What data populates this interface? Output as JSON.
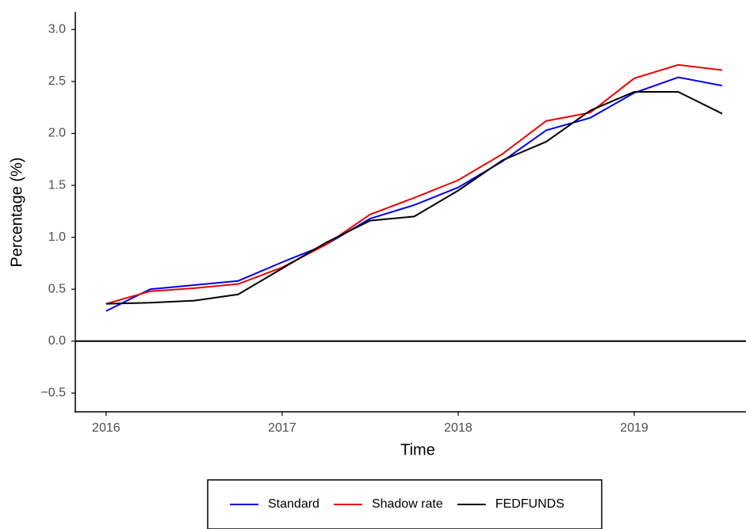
{
  "chart_data": {
    "type": "line",
    "x_label": "Time",
    "y_label": "Percentage (%)",
    "x": [
      2016,
      2016.25,
      2016.5,
      2016.75,
      2017,
      2017.25,
      2017.5,
      2017.75,
      2018,
      2018.25,
      2018.5,
      2018.75,
      2019,
      2019.25,
      2019.5
    ],
    "series": [
      {
        "name": "Standard",
        "color": "#0000ee",
        "values": [
          0.29,
          0.5,
          0.54,
          0.58,
          0.76,
          0.93,
          1.18,
          1.31,
          1.48,
          1.73,
          2.03,
          2.15,
          2.39,
          2.54,
          2.46
        ]
      },
      {
        "name": "Shadow rate",
        "color": "#ee0000",
        "values": [
          0.36,
          0.48,
          0.51,
          0.55,
          0.71,
          0.93,
          1.22,
          1.38,
          1.55,
          1.8,
          2.12,
          2.2,
          2.53,
          2.66,
          2.61
        ]
      },
      {
        "name": "FEDFUNDS",
        "color": "#000000",
        "values": [
          0.36,
          0.37,
          0.39,
          0.45,
          0.7,
          0.95,
          1.16,
          1.2,
          1.45,
          1.74,
          1.92,
          2.22,
          2.4,
          2.4,
          2.19
        ]
      }
    ],
    "xlim": [
      2015.825,
      2019.635
    ],
    "xticks": [
      2016,
      2017,
      2018,
      2019
    ],
    "ylim": [
      -0.68,
      3.17
    ],
    "yticks": [
      {
        "value": -0.5,
        "label": "−0.5"
      },
      {
        "value": 0,
        "label": "0.0"
      },
      0.5,
      {
        "value": 1,
        "label": "1.0"
      },
      1.5,
      {
        "value": 2,
        "label": "2.0"
      },
      2.5,
      {
        "value": 3,
        "label": "3.0"
      }
    ],
    "hline": 0,
    "grid": false,
    "legend": "bottom"
  }
}
